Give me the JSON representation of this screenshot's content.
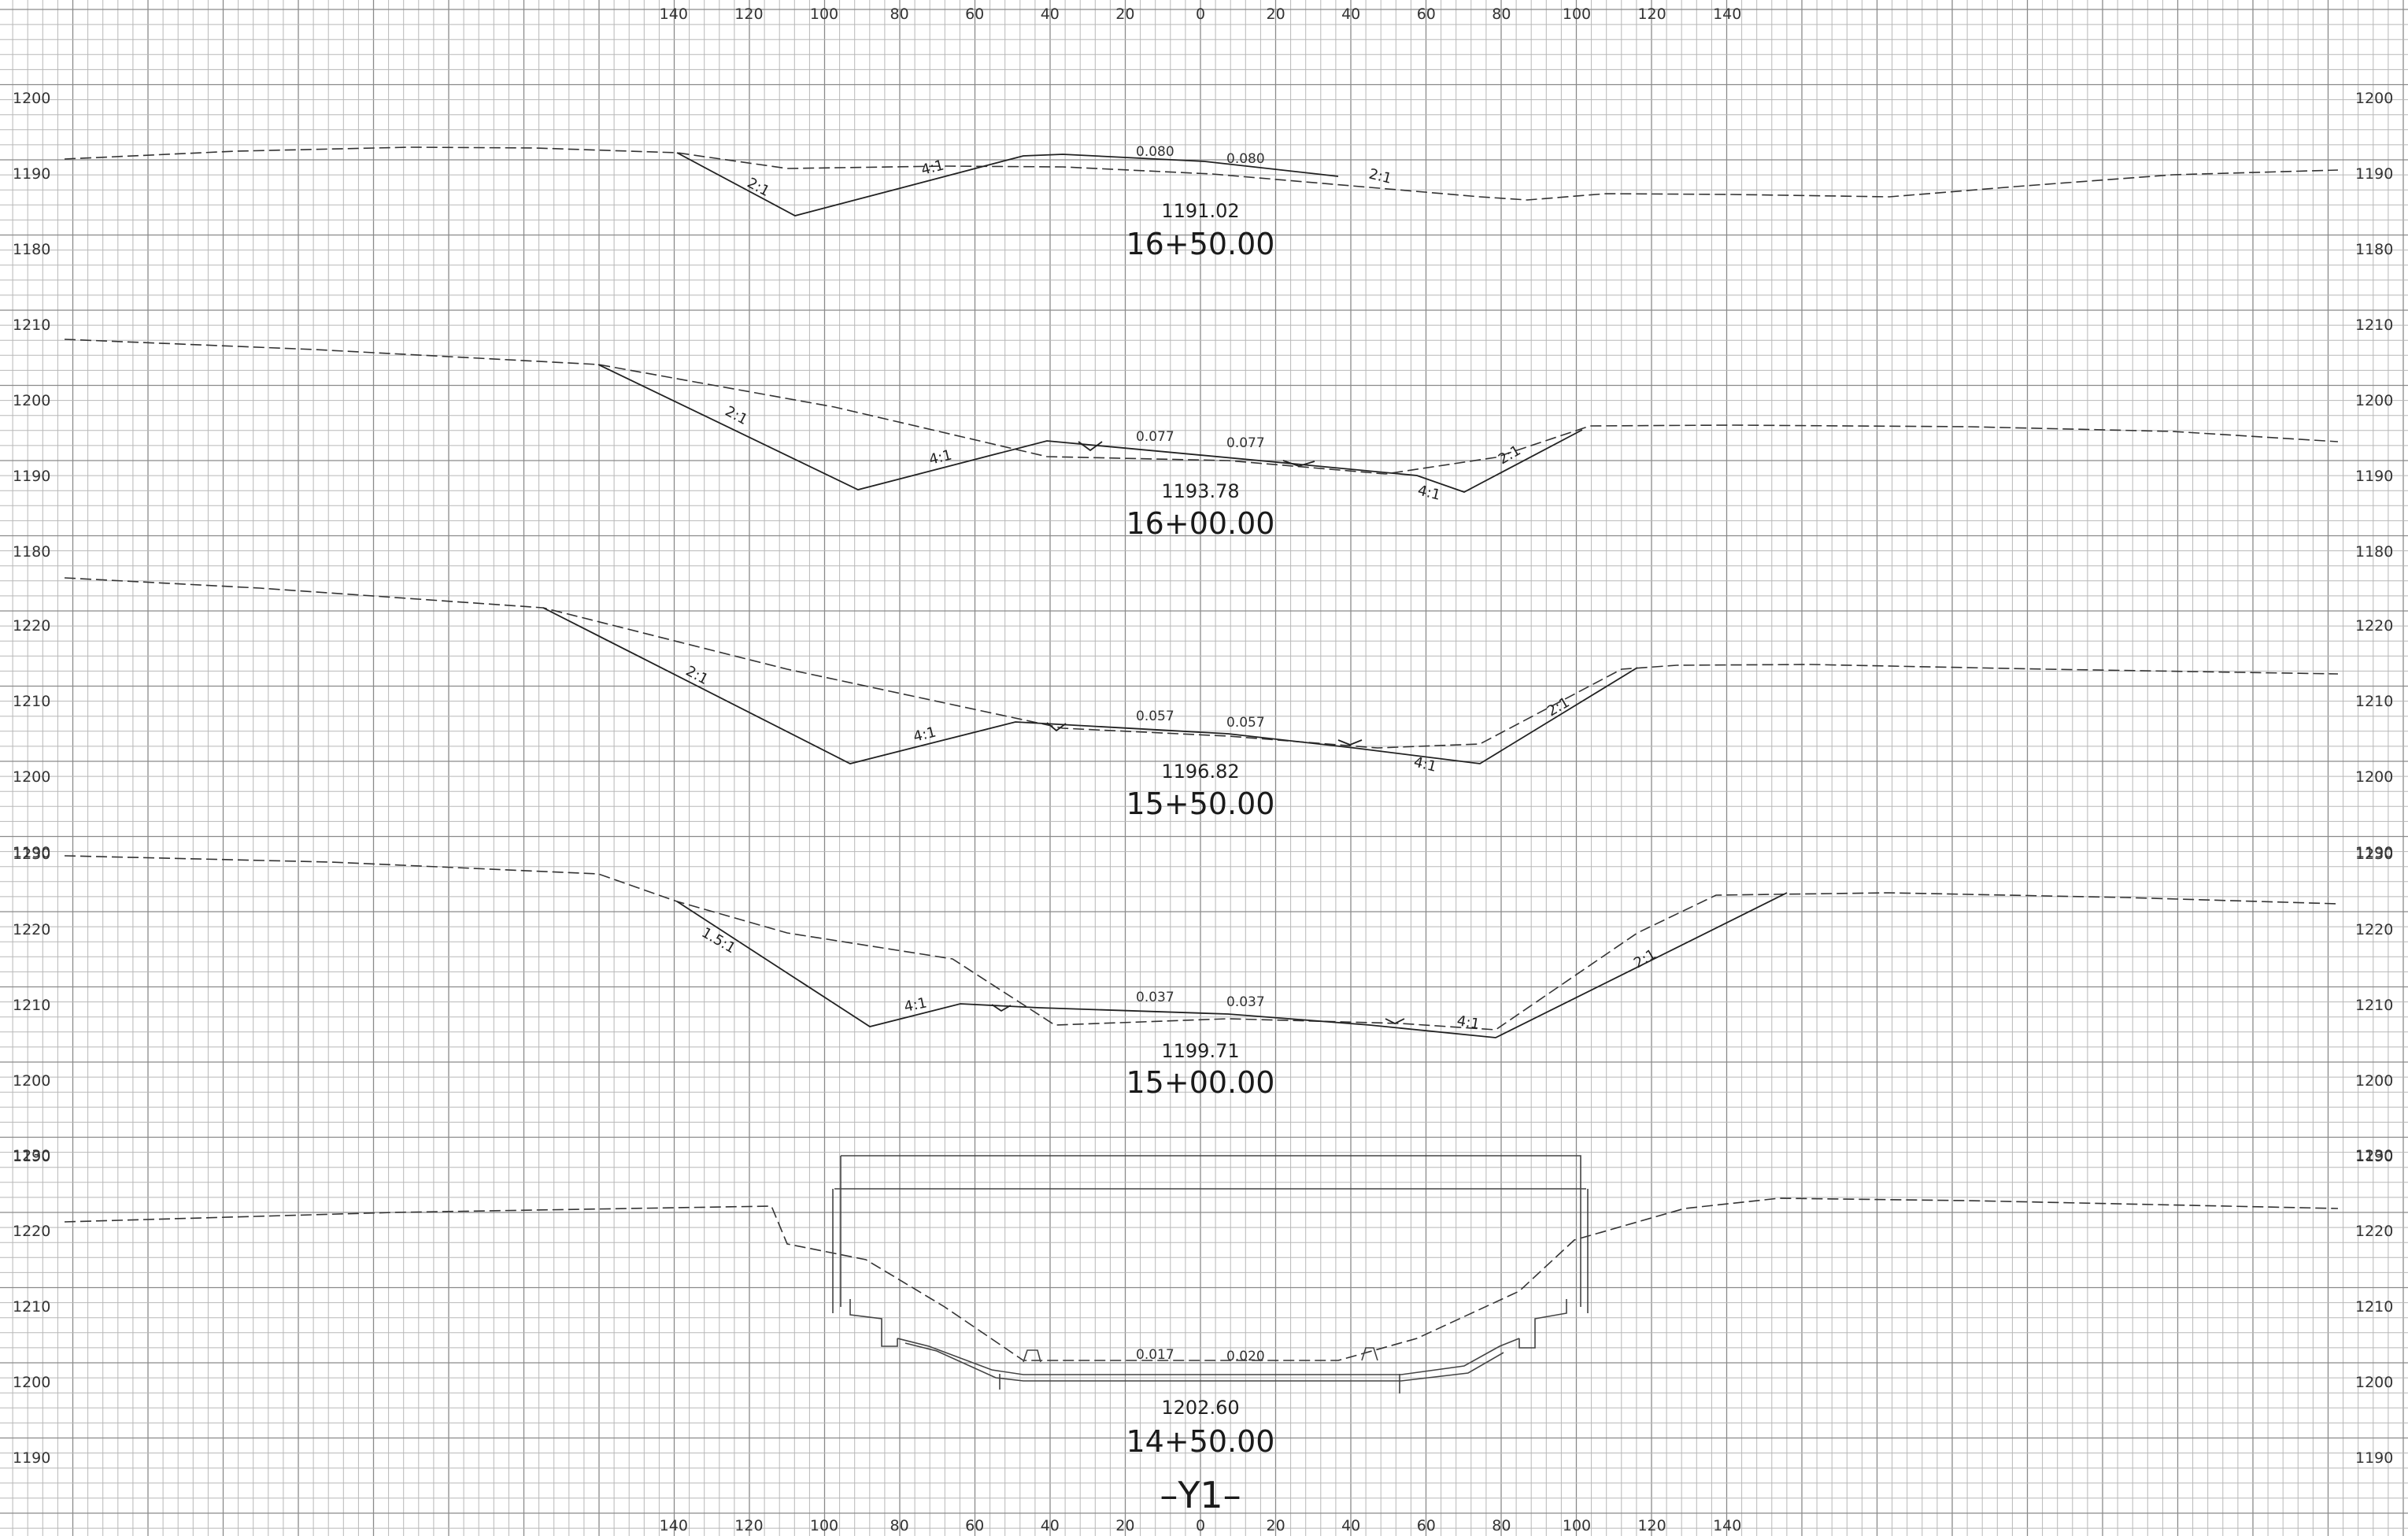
{
  "sheet": {
    "title": "–Y1–",
    "offset_ticks": [
      "140",
      "120",
      "100",
      "80",
      "60",
      "40",
      "20",
      "0",
      "20",
      "40",
      "60",
      "80",
      "100",
      "120",
      "140"
    ]
  },
  "sections": [
    {
      "station": "16+50.00",
      "cl_elevation": "1191.02",
      "cross_slopes": [
        "0.080",
        "0.080"
      ],
      "side_slopes": [
        "2:1",
        "4:1",
        "2:1"
      ],
      "elevation_ticks": [
        "1200",
        "1190",
        "1180"
      ]
    },
    {
      "station": "16+00.00",
      "cl_elevation": "1193.78",
      "cross_slopes": [
        "0.077",
        "0.077"
      ],
      "side_slopes": [
        "2:1",
        "4:1",
        "4:1",
        "2:1"
      ],
      "elevation_ticks": [
        "1210",
        "1200",
        "1190",
        "1180"
      ]
    },
    {
      "station": "15+50.00",
      "cl_elevation": "1196.82",
      "cross_slopes": [
        "0.057",
        "0.057"
      ],
      "side_slopes": [
        "2:1",
        "4:1",
        "4:1",
        "2:1"
      ],
      "elevation_ticks": [
        "1220",
        "1210",
        "1200",
        "1190"
      ]
    },
    {
      "station": "15+00.00",
      "cl_elevation": "1199.71",
      "cross_slopes": [
        "0.037",
        "0.037"
      ],
      "side_slopes": [
        "1.5:1",
        "4:1",
        "4:1",
        "2:1"
      ],
      "elevation_ticks": [
        "1230",
        "1220",
        "1210",
        "1200",
        "1190"
      ]
    },
    {
      "station": "14+50.00",
      "cl_elevation": "1202.60",
      "cross_slopes": [
        "0.017",
        "0.020"
      ],
      "side_slopes": [],
      "elevation_ticks": [
        "1230",
        "1220",
        "1210",
        "1200",
        "1190"
      ]
    }
  ],
  "colors": {
    "grid": "#b8b8b8",
    "linework": "#222222",
    "paper": "#ffffff"
  }
}
